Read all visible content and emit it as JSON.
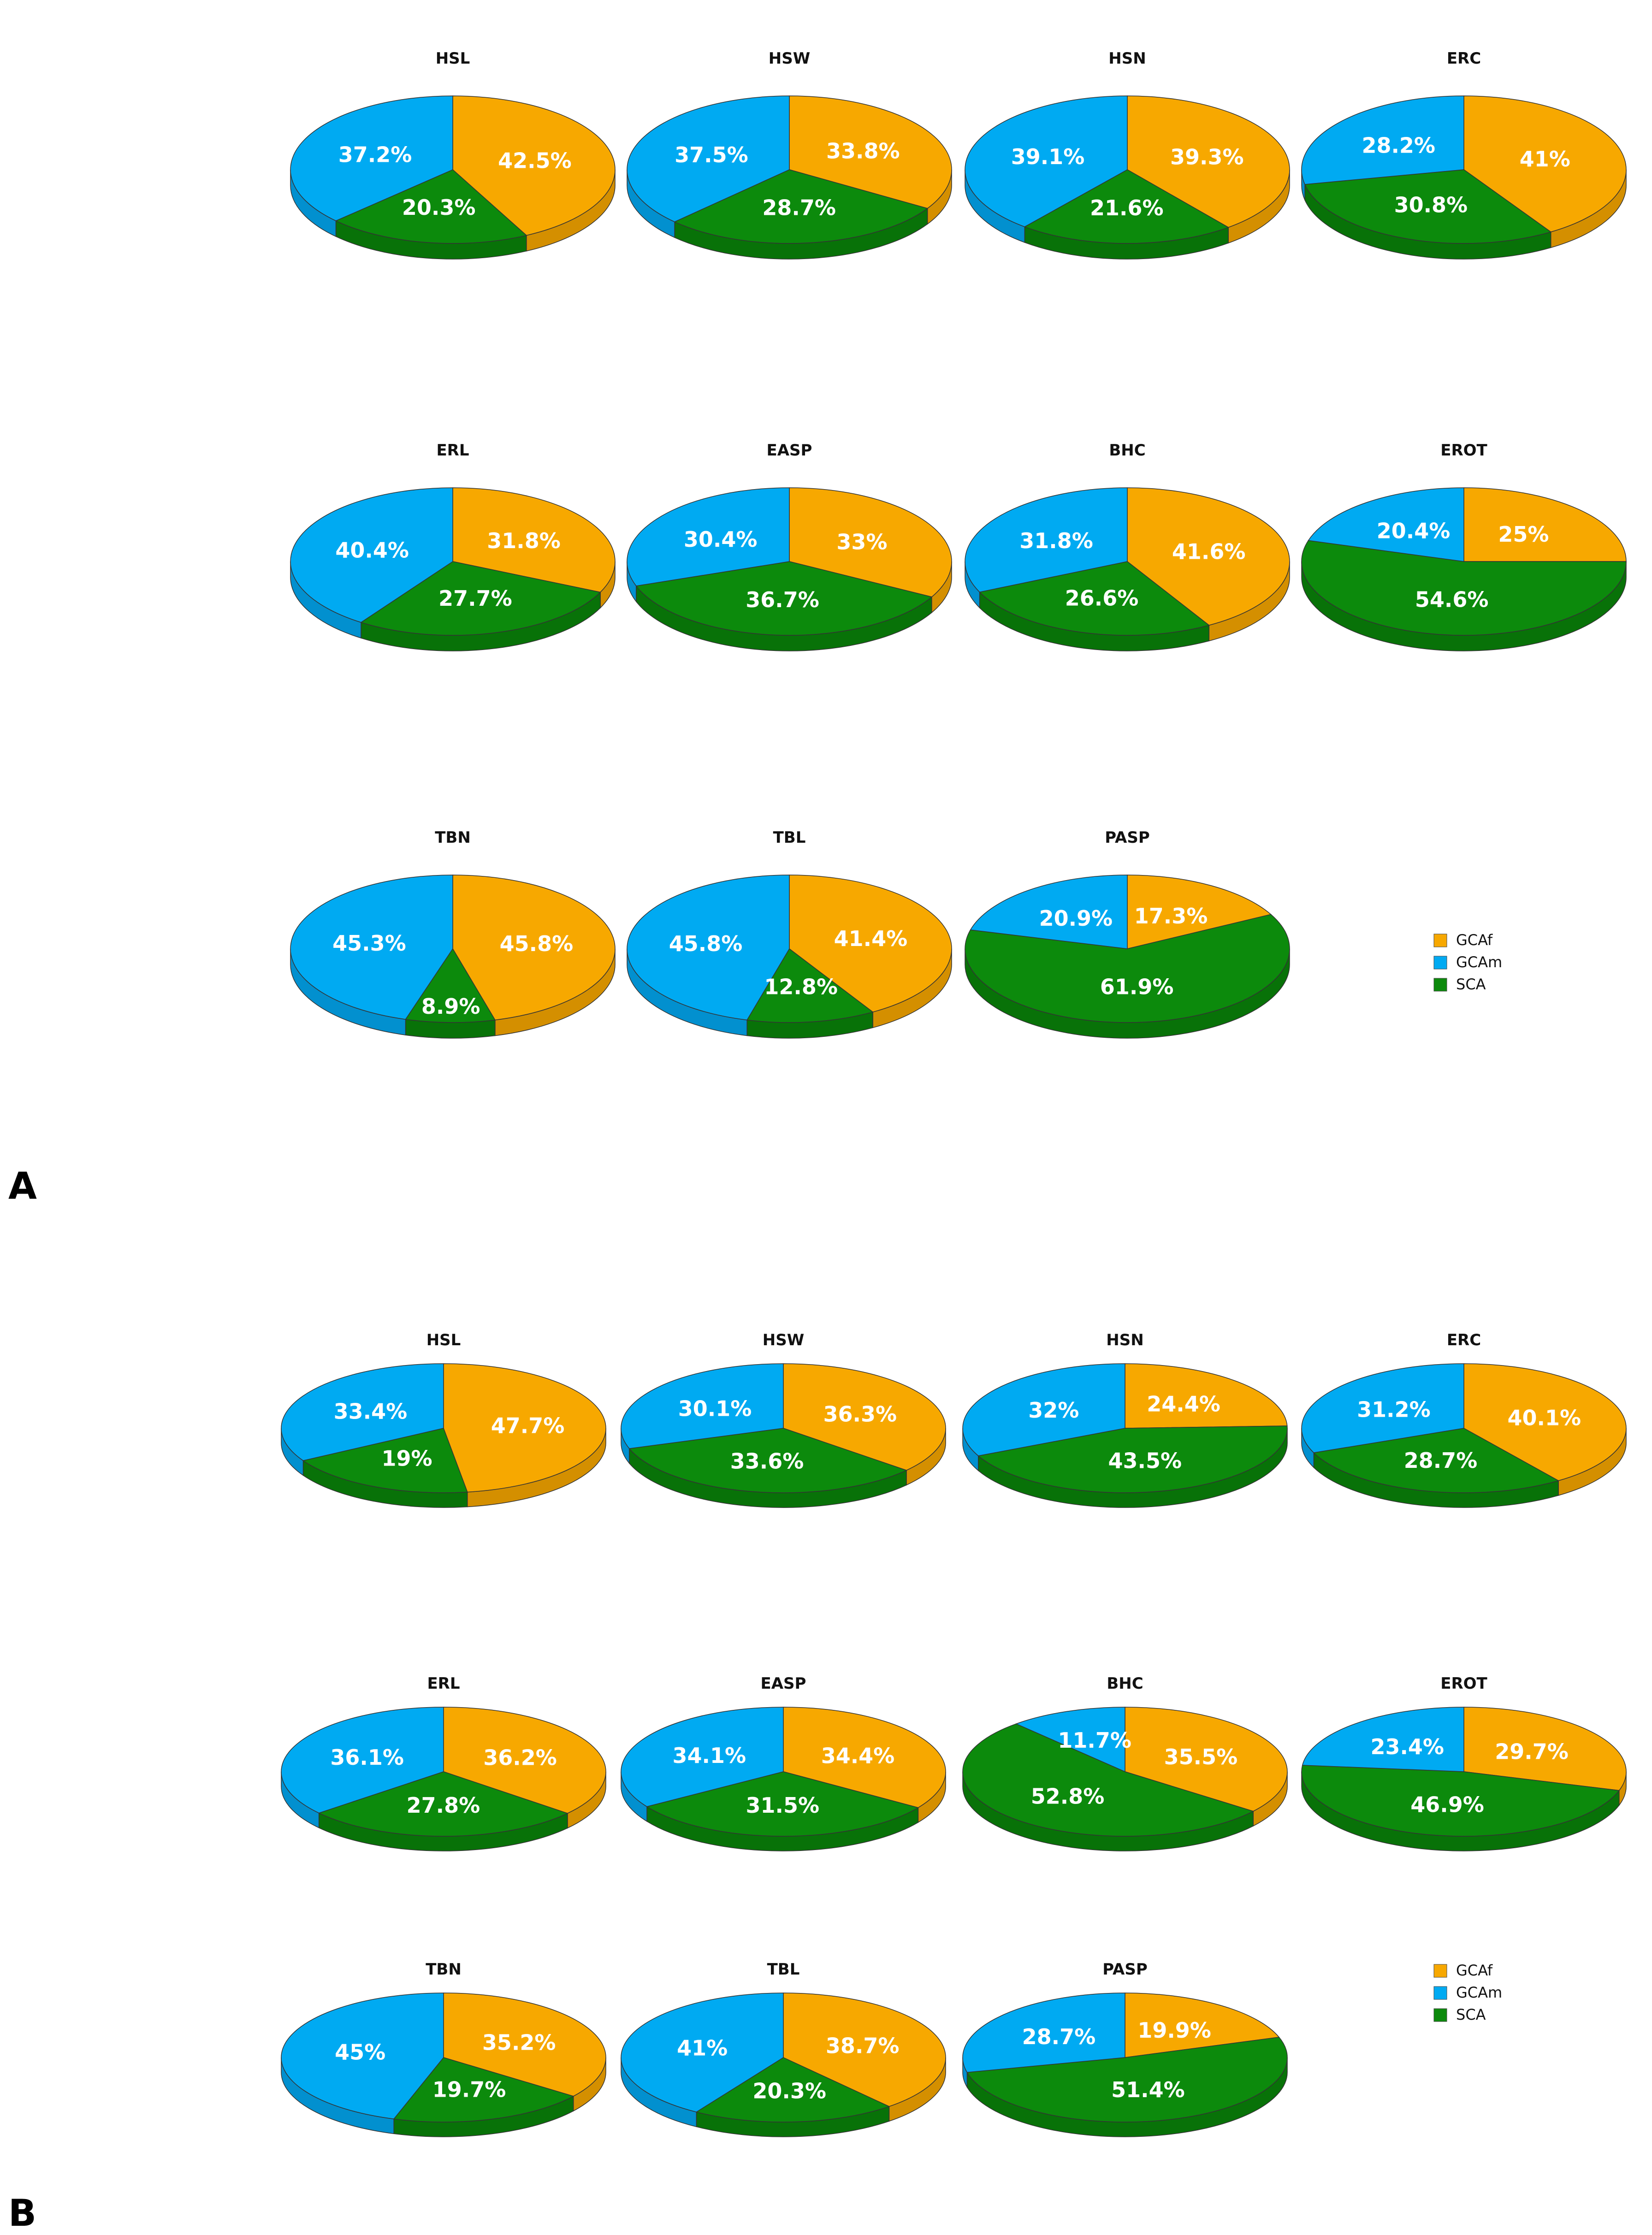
{
  "colors": {
    "GCAf": "#F7A800",
    "GCAm": "#00AAF2",
    "SCA": "#0C8A0C"
  },
  "colors_dark": {
    "GCAf": "#D48F00",
    "GCAm": "#0290CF",
    "SCA": "#087208"
  },
  "panels": [
    {
      "letter": "A",
      "legend": [
        "GCAf",
        "GCAm",
        "SCA"
      ],
      "chart_data": [
        {
          "type": "pie",
          "title": "HSL",
          "categories": [
            "GCAf",
            "GCAm",
            "SCA"
          ],
          "values": [
            42.5,
            37.2,
            20.3
          ],
          "labels": [
            "42.5%",
            "37.2%",
            "20.3%"
          ]
        },
        {
          "type": "pie",
          "title": "HSW",
          "categories": [
            "GCAf",
            "GCAm",
            "SCA"
          ],
          "values": [
            33.8,
            37.5,
            28.7
          ],
          "labels": [
            "33.8%",
            "37.5%",
            "28.7%"
          ]
        },
        {
          "type": "pie",
          "title": "HSN",
          "categories": [
            "GCAf",
            "GCAm",
            "SCA"
          ],
          "values": [
            39.3,
            39.1,
            21.6
          ],
          "labels": [
            "39.3%",
            "39.1%",
            "21.6%"
          ]
        },
        {
          "type": "pie",
          "title": "ERC",
          "categories": [
            "GCAf",
            "GCAm",
            "SCA"
          ],
          "values": [
            41,
            28.2,
            30.8
          ],
          "labels": [
            "41%",
            "28.2%",
            "30.8%"
          ]
        },
        {
          "type": "pie",
          "title": "ERL",
          "categories": [
            "GCAf",
            "GCAm",
            "SCA"
          ],
          "values": [
            31.8,
            40.4,
            27.7
          ],
          "labels": [
            "31.8%",
            "40.4%",
            "27.7%"
          ]
        },
        {
          "type": "pie",
          "title": "EASP",
          "categories": [
            "GCAf",
            "GCAm",
            "SCA"
          ],
          "values": [
            33,
            30.4,
            36.7
          ],
          "labels": [
            "33%",
            "30.4%",
            "36.7%"
          ]
        },
        {
          "type": "pie",
          "title": "BHC",
          "categories": [
            "GCAf",
            "GCAm",
            "SCA"
          ],
          "values": [
            41.6,
            31.8,
            26.6
          ],
          "labels": [
            "41.6%",
            "31.8%",
            "26.6%"
          ]
        },
        {
          "type": "pie",
          "title": "EROT",
          "categories": [
            "GCAf",
            "GCAm",
            "SCA"
          ],
          "values": [
            25,
            20.4,
            54.6
          ],
          "labels": [
            "25%",
            "20.4%",
            "54.6%"
          ]
        },
        {
          "type": "pie",
          "title": "TBN",
          "categories": [
            "GCAf",
            "GCAm",
            "SCA"
          ],
          "values": [
            45.8,
            45.3,
            8.9
          ],
          "labels": [
            "45.8%",
            "45.3%",
            "8.9%"
          ]
        },
        {
          "type": "pie",
          "title": "TBL",
          "categories": [
            "GCAf",
            "GCAm",
            "SCA"
          ],
          "values": [
            41.4,
            45.8,
            12.8
          ],
          "labels": [
            "41.4%",
            "45.8%",
            "12.8%"
          ]
        },
        {
          "type": "pie",
          "title": "PASP",
          "categories": [
            "GCAf",
            "GCAm",
            "SCA"
          ],
          "values": [
            17.3,
            20.9,
            61.9
          ],
          "labels": [
            "17.3%",
            "20.9%",
            "61.9%"
          ]
        }
      ]
    },
    {
      "letter": "B",
      "legend": [
        "GCAf",
        "GCAm",
        "SCA"
      ],
      "chart_data": [
        {
          "type": "pie",
          "title": "HSL",
          "categories": [
            "GCAf",
            "GCAm",
            "SCA"
          ],
          "values": [
            47.7,
            33.4,
            19
          ],
          "labels": [
            "47.7%",
            "33.4%",
            "19%"
          ]
        },
        {
          "type": "pie",
          "title": "HSW",
          "categories": [
            "GCAf",
            "GCAm",
            "SCA"
          ],
          "values": [
            36.3,
            30.1,
            33.6
          ],
          "labels": [
            "36.3%",
            "30.1%",
            "33.6%"
          ]
        },
        {
          "type": "pie",
          "title": "HSN",
          "categories": [
            "GCAf",
            "GCAm",
            "SCA"
          ],
          "values": [
            24.4,
            32,
            43.5
          ],
          "labels": [
            "24.4%",
            "32%",
            "43.5%"
          ]
        },
        {
          "type": "pie",
          "title": "ERC",
          "categories": [
            "GCAf",
            "GCAm",
            "SCA"
          ],
          "values": [
            40.1,
            31.2,
            28.7
          ],
          "labels": [
            "40.1%",
            "31.2%",
            "28.7%"
          ]
        },
        {
          "type": "pie",
          "title": "ERL",
          "categories": [
            "GCAf",
            "GCAm",
            "SCA"
          ],
          "values": [
            36.2,
            36.1,
            27.8
          ],
          "labels": [
            "36.2%",
            "36.1%",
            "27.8%"
          ]
        },
        {
          "type": "pie",
          "title": "EASP",
          "categories": [
            "GCAf",
            "GCAm",
            "SCA"
          ],
          "values": [
            34.4,
            34.1,
            31.5
          ],
          "labels": [
            "34.4%",
            "34.1%",
            "31.5%"
          ]
        },
        {
          "type": "pie",
          "title": "BHC",
          "categories": [
            "GCAf",
            "GCAm",
            "SCA"
          ],
          "values": [
            35.5,
            11.7,
            52.8
          ],
          "labels": [
            "35.5%",
            "11.7%",
            "52.8%"
          ]
        },
        {
          "type": "pie",
          "title": "EROT",
          "categories": [
            "GCAf",
            "GCAm",
            "SCA"
          ],
          "values": [
            29.7,
            23.4,
            46.9
          ],
          "labels": [
            "29.7%",
            "23.4%",
            "46.9%"
          ]
        },
        {
          "type": "pie",
          "title": "TBN",
          "categories": [
            "GCAf",
            "GCAm",
            "SCA"
          ],
          "values": [
            35.2,
            45,
            19.7
          ],
          "labels": [
            "35.2%",
            "45%",
            "19.7%"
          ]
        },
        {
          "type": "pie",
          "title": "TBL",
          "categories": [
            "GCAf",
            "GCAm",
            "SCA"
          ],
          "values": [
            38.7,
            41,
            20.3
          ],
          "labels": [
            "38.7%",
            "41%",
            "20.3%"
          ]
        },
        {
          "type": "pie",
          "title": "PASP",
          "categories": [
            "GCAf",
            "GCAm",
            "SCA"
          ],
          "values": [
            19.9,
            28.7,
            51.4
          ],
          "labels": [
            "19.9%",
            "28.7%",
            "51.4%"
          ]
        }
      ]
    }
  ]
}
